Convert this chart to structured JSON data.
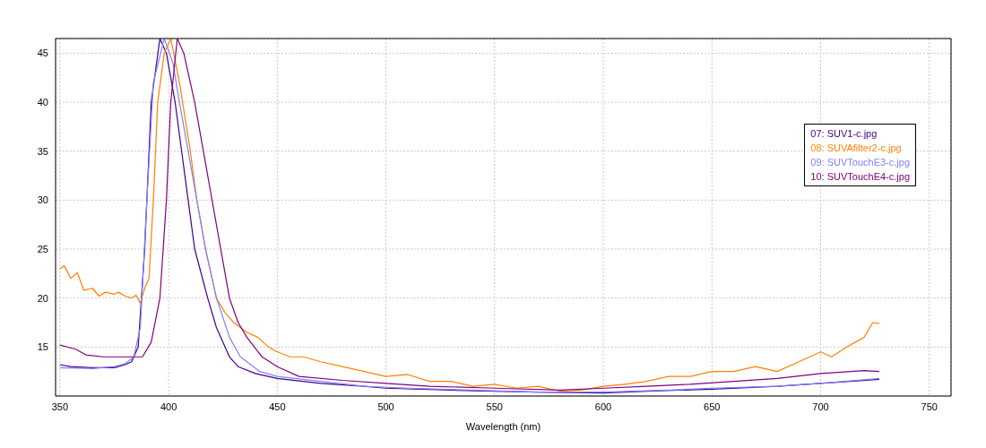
{
  "chart_data": {
    "type": "line",
    "xlabel": "Wavelength (nm)",
    "xlim": [
      348,
      760
    ],
    "xticks": [
      350,
      400,
      450,
      500,
      550,
      600,
      650,
      700,
      750
    ],
    "ylim": [
      10,
      46.5
    ],
    "yticks": [
      15,
      20,
      25,
      30,
      35,
      40,
      45
    ],
    "grid": true,
    "legend": "top right",
    "line_style": "solid",
    "marker": "none",
    "series": [
      {
        "name": "07: SUV1-c.jpg",
        "color": "#400080",
        "x": [
          350,
          355,
          365,
          375,
          380,
          383,
          386,
          389,
          392,
          396,
          399,
          403,
          406,
          409,
          412,
          418,
          422,
          428,
          432,
          440,
          450,
          470,
          490,
          500,
          530,
          550,
          570,
          600,
          620,
          650,
          680,
          700,
          727
        ],
        "values": [
          13.2,
          13,
          12.9,
          12.9,
          13.2,
          13.5,
          15,
          25,
          40,
          46.5,
          45,
          40,
          35,
          30,
          25,
          20,
          17,
          14,
          13,
          12.3,
          11.8,
          11.3,
          11,
          10.8,
          10.6,
          10.5,
          10.4,
          10.3,
          10.5,
          10.7,
          11,
          11.3,
          11.7
        ]
      },
      {
        "name": "08: SUVAfilter2-c.jpg",
        "color": "#ff8000",
        "x": [
          350,
          352,
          355,
          358,
          361,
          365,
          368,
          371,
          375,
          377,
          380,
          383,
          385,
          387,
          389,
          391,
          393,
          395,
          398,
          401,
          405,
          410,
          413,
          417,
          422,
          426,
          430,
          436,
          441,
          446,
          450,
          456,
          462,
          470,
          480,
          490,
          500,
          510,
          520,
          530,
          540,
          550,
          560,
          570,
          580,
          590,
          600,
          610,
          620,
          630,
          640,
          650,
          660,
          670,
          680,
          690,
          700,
          705,
          712,
          716,
          720,
          724,
          727
        ],
        "values": [
          23,
          23.3,
          22,
          22.6,
          20.8,
          21,
          20.2,
          20.6,
          20.4,
          20.6,
          20.2,
          20,
          20.3,
          19.5,
          21,
          22,
          30,
          40,
          45,
          46.5,
          42,
          35,
          30,
          25,
          20,
          18.5,
          17.5,
          16.5,
          16,
          15,
          14.5,
          14,
          14,
          13.5,
          13,
          12.5,
          12,
          12.2,
          11.5,
          11.5,
          11,
          11.2,
          10.8,
          11,
          10.5,
          10.6,
          11,
          11.2,
          11.5,
          12,
          12,
          12.5,
          12.5,
          13,
          12.5,
          13.5,
          14.5,
          14,
          15,
          15.5,
          16,
          17.5,
          17.4
        ]
      },
      {
        "name": "09: SUVTouchE3-c.jpg",
        "color": "#8080ff",
        "x": [
          350,
          365,
          375,
          380,
          384,
          387,
          390,
          393,
          398,
          402,
          405,
          409,
          413,
          417,
          422,
          428,
          433,
          442,
          450,
          470,
          490,
          510,
          540,
          570,
          600,
          630,
          650,
          680,
          700,
          727
        ],
        "values": [
          12.9,
          12.8,
          13,
          13.3,
          14,
          17,
          30,
          42,
          46.5,
          44,
          40,
          35,
          30,
          25,
          20,
          16,
          14,
          12.5,
          12,
          11.5,
          11,
          10.8,
          10.6,
          10.4,
          10.4,
          10.6,
          10.8,
          11,
          11.3,
          11.8
        ]
      },
      {
        "name": "10: SUVTouchE4-c.jpg",
        "color": "#800080",
        "x": [
          350,
          357,
          362,
          370,
          380,
          388,
          392,
          396,
          399,
          401,
          404,
          407,
          412,
          416,
          420,
          424,
          428,
          432,
          436,
          443,
          450,
          460,
          480,
          500,
          520,
          550,
          580,
          600,
          620,
          640,
          660,
          680,
          700,
          720,
          727
        ],
        "values": [
          15.2,
          14.8,
          14.2,
          14,
          14,
          14,
          15.5,
          20,
          30,
          40,
          46.5,
          45,
          40,
          35,
          30,
          25,
          20,
          17.5,
          16,
          14,
          13,
          12,
          11.6,
          11.3,
          11,
          10.8,
          10.6,
          10.8,
          11,
          11.2,
          11.5,
          11.8,
          12.3,
          12.6,
          12.5
        ]
      }
    ]
  }
}
